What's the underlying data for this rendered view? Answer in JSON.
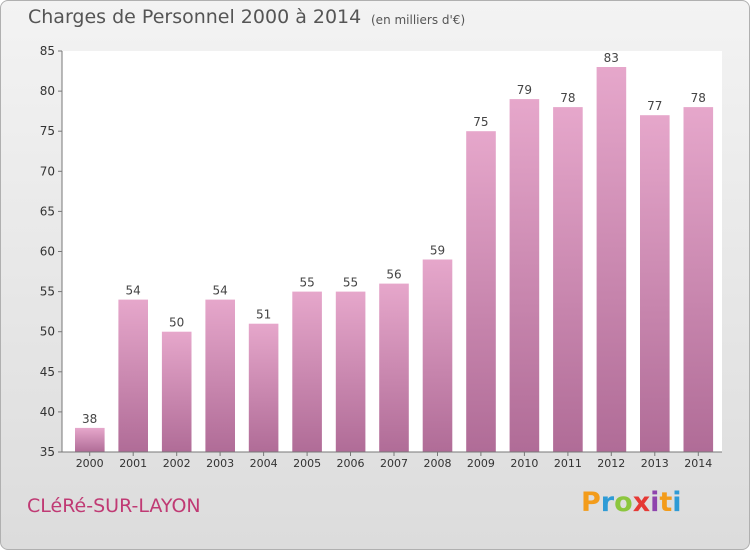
{
  "title": "Charges de Personnel 2000 à 2014",
  "subtitle": "(en milliers d'€)",
  "commune": "CLéRé-SUR-LAYON",
  "logo": {
    "letters": [
      "P",
      "r",
      "o",
      "x",
      "i",
      "t",
      "i"
    ],
    "colors": [
      "#f39c1b",
      "#2e9bd6",
      "#8cc63e",
      "#e53935",
      "#8e44ad",
      "#f39c1b",
      "#2e9bd6"
    ]
  },
  "colors": {
    "bar_top": "#e6a7cb",
    "bar_bottom": "#b06c97",
    "label": "#444444"
  },
  "chart_data": {
    "type": "bar",
    "categories": [
      "2000",
      "2001",
      "2002",
      "2003",
      "2004",
      "2005",
      "2006",
      "2007",
      "2008",
      "2009",
      "2010",
      "2011",
      "2012",
      "2013",
      "2014"
    ],
    "values": [
      38,
      54,
      50,
      54,
      51,
      55,
      55,
      56,
      59,
      75,
      79,
      78,
      83,
      77,
      78
    ],
    "value_labels": [
      "38",
      "54",
      "50",
      "54",
      "51",
      "55",
      "55",
      "56",
      "59",
      "75",
      "79",
      "78",
      "83",
      "77",
      "78"
    ],
    "yticks": [
      "35",
      "40",
      "45",
      "50",
      "55",
      "60",
      "65",
      "70",
      "75",
      "80",
      "85"
    ],
    "ylim": [
      35,
      85
    ],
    "grid": false
  }
}
